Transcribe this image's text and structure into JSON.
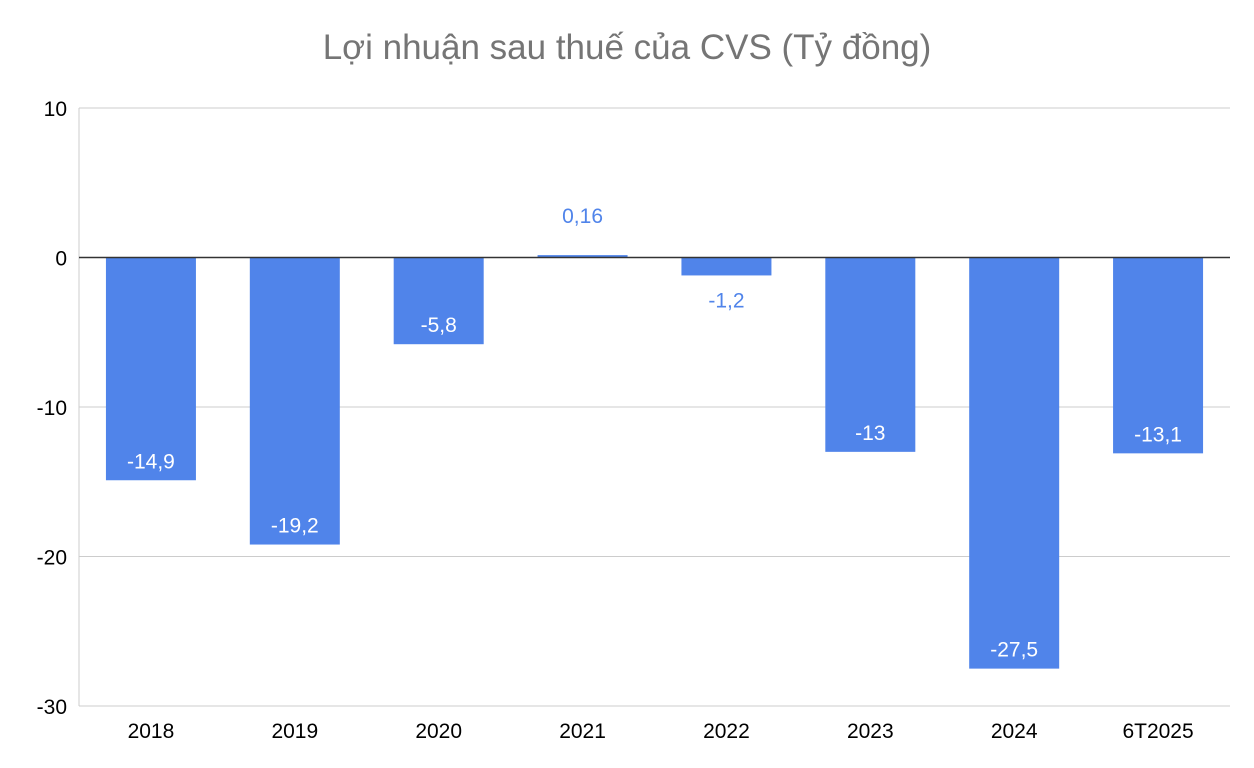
{
  "chart_data": {
    "type": "bar",
    "title": "Lợi nhuận sau thuế của CVS (Tỷ đồng)",
    "xlabel": "",
    "ylabel": "",
    "categories": [
      "2018",
      "2019",
      "2020",
      "2021",
      "2022",
      "2023",
      "2024",
      "6T2025"
    ],
    "values": [
      -14.9,
      -19.2,
      -5.8,
      0.16,
      -1.2,
      -13,
      -27.5,
      -13.1
    ],
    "data_labels": [
      "-14,9",
      "-19,2",
      "-5,8",
      "0,16",
      "-1,2",
      "-13",
      "-27,5",
      "-13,1"
    ],
    "ylim": [
      -30,
      10
    ],
    "yticks": [
      10,
      0,
      -10,
      -20,
      -30
    ],
    "grid": true,
    "legend": "none",
    "colors": {
      "bar": "#5084EA",
      "label_inside": "#FFFFFF",
      "label_outside": "#5084EA",
      "title": "#757575",
      "gridline": "#CCCCCC",
      "zero_line": "#333333",
      "tick_text": "#000000"
    }
  }
}
